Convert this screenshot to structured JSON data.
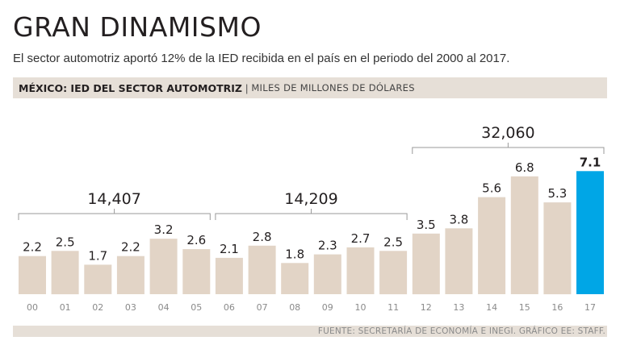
{
  "header": {
    "title": "GRAN DINAMISMO",
    "subtitle": "El sector automotriz aportó 12% de la IED recibida en el país en el periodo del 2000 al 2017."
  },
  "band": {
    "main": "MÉXICO: IED DEL SECTOR AUTOMOTRIZ",
    "separator": "|",
    "unit": "MILES DE MILLONES DE DÓLARES"
  },
  "footer": {
    "source": "FUENTE: SECRETARÍA DE ECONOMÍA E INEGI. GRÁFICO EE: STAFF."
  },
  "colors": {
    "bar": "#e2d4c6",
    "highlight": "#00a6e6",
    "band": "#e6dfd7",
    "text": "#231f20",
    "bracket": "#9a9a9a"
  },
  "chart_data": {
    "type": "bar",
    "title": "MÉXICO: IED DEL SECTOR AUTOMOTRIZ",
    "ylabel": "MILES DE MILLONES DE DÓLARES",
    "categories": [
      "00",
      "01",
      "02",
      "03",
      "04",
      "05",
      "06",
      "07",
      "08",
      "09",
      "10",
      "11",
      "12",
      "13",
      "14",
      "15",
      "16",
      "17"
    ],
    "values": [
      2.2,
      2.5,
      1.7,
      2.2,
      3.2,
      2.6,
      2.1,
      2.8,
      1.8,
      2.3,
      2.7,
      2.5,
      3.5,
      3.8,
      5.6,
      6.8,
      5.3,
      7.1
    ],
    "value_labels": [
      "2.2",
      "2.5",
      "1.7",
      "2.2",
      "3.2",
      "2.6",
      "2.1",
      "2.8",
      "1.8",
      "2.3",
      "2.7",
      "2.5",
      "3.5",
      "3.8",
      "5.6",
      "6.8",
      "5.3",
      "7.1"
    ],
    "highlight_index": 17,
    "ylim": [
      0,
      7.3
    ],
    "groups": [
      {
        "label": "14,407",
        "start": 0,
        "end": 5
      },
      {
        "label": "14,209",
        "start": 6,
        "end": 11
      },
      {
        "label": "32,060",
        "start": 12,
        "end": 17
      }
    ]
  }
}
